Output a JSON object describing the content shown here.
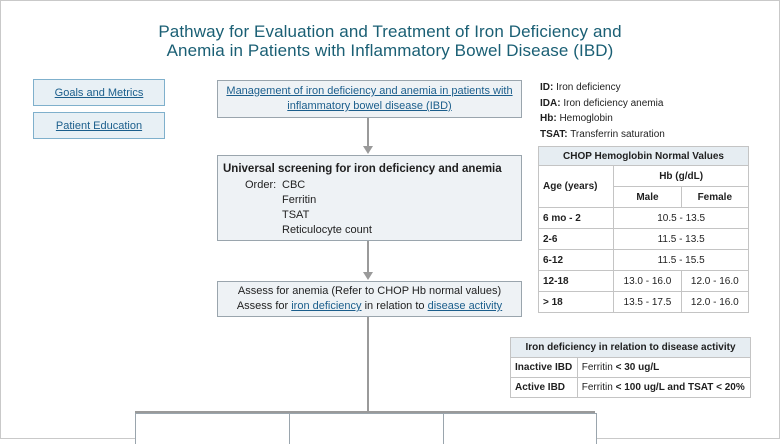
{
  "title": {
    "line1": "Pathway for Evaluation and Treatment of Iron Deficiency and",
    "line2": "Anemia in Patients with Inflammatory Bowel Disease (IBD)"
  },
  "nav": {
    "goals": "Goals and Metrics",
    "education": "Patient Education"
  },
  "flow": {
    "box1": "Management of iron deficiency and anemia in patients with inflammatory bowel disease (IBD)",
    "box2": {
      "heading": "Universal screening for iron deficiency and anemia",
      "order_label": "Order:",
      "items": [
        "CBC",
        "Ferritin",
        "TSAT",
        "Reticulocyte count"
      ]
    },
    "box3": {
      "line1": "Assess for anemia (Refer to CHOP Hb normal values)",
      "line2_prefix": "Assess for ",
      "line2_link1": "iron deficiency",
      "line2_mid": " in relation to ",
      "line2_link2": "disease activity"
    }
  },
  "definitions": [
    {
      "abbr": "ID:",
      "text": " Iron deficiency"
    },
    {
      "abbr": "IDA:",
      "text": " Iron deficiency anemia"
    },
    {
      "abbr": "Hb:",
      "text": " Hemoglobin"
    },
    {
      "abbr": "TSAT:",
      "text": " Transferrin saturation"
    }
  ],
  "hb_table": {
    "caption": "CHOP Hemoglobin Normal Values",
    "col_age": "Age (years)",
    "col_hb": "Hb (g/dL)",
    "col_male": "Male",
    "col_female": "Female",
    "rows": [
      {
        "age": "6 mo - 2",
        "both": "10.5 - 13.5"
      },
      {
        "age": "2-6",
        "both": "11.5 - 13.5"
      },
      {
        "age": "6-12",
        "both": "11.5 - 15.5"
      },
      {
        "age": "12-18",
        "male": "13.0 - 16.0",
        "female": "12.0 - 16.0"
      },
      {
        "age": "> 18",
        "male": "13.5 - 17.5",
        "female": "12.0 - 16.0"
      }
    ]
  },
  "id_table": {
    "caption": "Iron deficiency in relation to disease activity",
    "rows": [
      {
        "label": "Inactive IBD",
        "prefix": "Ferritin ",
        "value": "< 30 ug/L"
      },
      {
        "label": "Active IBD",
        "prefix": "Ferritin ",
        "value": "< 100 ug/L and TSAT < 20%"
      }
    ]
  }
}
